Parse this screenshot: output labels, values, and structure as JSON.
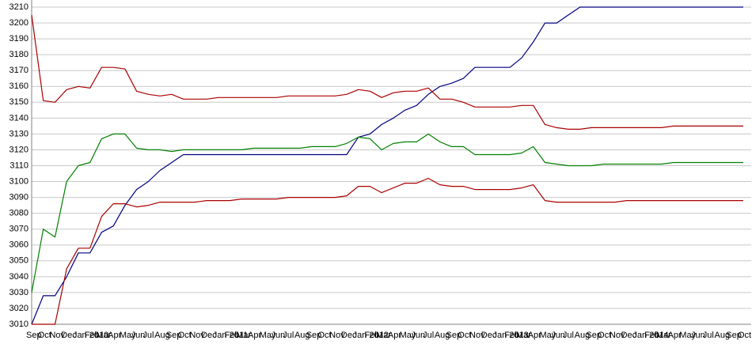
{
  "chart_data": {
    "type": "line",
    "categories": [
      "Sep",
      "Oct",
      "Nov",
      "Dec",
      "Jan 2010",
      "Feb",
      "Mar",
      "Apr",
      "May",
      "Jun",
      "Jul",
      "Aug",
      "Sep",
      "Oct",
      "Nov",
      "Dec",
      "Jan 2011",
      "Feb",
      "Mar",
      "Apr",
      "May",
      "Jun",
      "Jul",
      "Aug",
      "Sep",
      "Oct",
      "Nov",
      "Dec",
      "Jan 2012",
      "Feb",
      "Mar",
      "Apr",
      "May",
      "Jun",
      "Jul",
      "Aug",
      "Sep",
      "Oct",
      "Nov",
      "Dec",
      "Jan 2013",
      "Feb",
      "Mar",
      "Apr",
      "May",
      "Jun",
      "Jul",
      "Aug",
      "Sep",
      "Oct",
      "Nov",
      "Dec",
      "Jan 2014",
      "Feb",
      "Mar",
      "Apr",
      "May",
      "Jun",
      "Jul",
      "Aug",
      "Sep",
      "Oct"
    ],
    "series": [
      {
        "color": "#000080",
        "values": [
          3010,
          3028,
          3028,
          3040,
          3055,
          3055,
          3068,
          3072,
          3085,
          3095,
          3100,
          3107,
          3112,
          3117,
          3117,
          3117,
          3117,
          3117,
          3117,
          3117,
          3117,
          3117,
          3117,
          3117,
          3117,
          3117,
          3117,
          3117,
          3128,
          3130,
          3136,
          3140,
          3145,
          3148,
          3155,
          3160,
          3162,
          3165,
          3172,
          3172,
          3172,
          3172,
          3178,
          3188,
          3200,
          3200,
          3205,
          3210,
          3210,
          3210,
          3210,
          3210,
          3210,
          3210,
          3210,
          3210,
          3210,
          3210,
          3210,
          3210,
          3210,
          3210
        ]
      },
      {
        "color": "#aa0000",
        "values": [
          3205,
          3151,
          3150,
          3158,
          3160,
          3159,
          3172,
          3172,
          3171,
          3157,
          3155,
          3154,
          3155,
          3152,
          3152,
          3152,
          3153,
          3153,
          3153,
          3153,
          3153,
          3153,
          3154,
          3154,
          3154,
          3154,
          3154,
          3155,
          3158,
          3157,
          3153,
          3156,
          3157,
          3157,
          3159,
          3152,
          3152,
          3150,
          3147,
          3147,
          3147,
          3147,
          3148,
          3148,
          3136,
          3134,
          3133,
          3133,
          3134,
          3134,
          3134,
          3134,
          3134,
          3134,
          3134,
          3135,
          3135,
          3135,
          3135,
          3135,
          3135,
          3135
        ]
      },
      {
        "color": "#008000",
        "values": [
          3030,
          3070,
          3065,
          3100,
          3110,
          3112,
          3127,
          3130,
          3130,
          3121,
          3120,
          3120,
          3119,
          3120,
          3120,
          3120,
          3120,
          3120,
          3120,
          3121,
          3121,
          3121,
          3121,
          3121,
          3122,
          3122,
          3122,
          3124,
          3128,
          3127,
          3120,
          3124,
          3125,
          3125,
          3130,
          3125,
          3122,
          3122,
          3117,
          3117,
          3117,
          3117,
          3118,
          3122,
          3112,
          3111,
          3110,
          3110,
          3110,
          3111,
          3111,
          3111,
          3111,
          3111,
          3111,
          3112,
          3112,
          3112,
          3112,
          3112,
          3112,
          3112
        ]
      },
      {
        "color": "#aa0000",
        "values": [
          3010,
          3010,
          3010,
          3045,
          3058,
          3058,
          3078,
          3086,
          3086,
          3084,
          3085,
          3087,
          3087,
          3087,
          3087,
          3088,
          3088,
          3088,
          3089,
          3089,
          3089,
          3089,
          3090,
          3090,
          3090,
          3090,
          3090,
          3091,
          3097,
          3097,
          3093,
          3096,
          3099,
          3099,
          3102,
          3098,
          3097,
          3097,
          3095,
          3095,
          3095,
          3095,
          3096,
          3098,
          3088,
          3087,
          3087,
          3087,
          3087,
          3087,
          3087,
          3088,
          3088,
          3088,
          3088,
          3088,
          3088,
          3088,
          3088,
          3088,
          3088,
          3088
        ]
      }
    ],
    "ylim": [
      3010,
      3210
    ],
    "yticks": [
      3010,
      3020,
      3030,
      3040,
      3050,
      3060,
      3070,
      3080,
      3090,
      3100,
      3110,
      3120,
      3130,
      3140,
      3150,
      3160,
      3170,
      3180,
      3190,
      3200,
      3210
    ],
    "grid": true
  }
}
